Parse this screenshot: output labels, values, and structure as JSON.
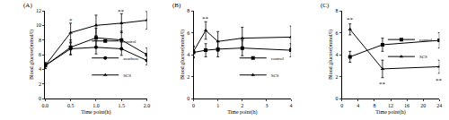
{
  "chart_data": [
    {
      "type": "line",
      "title": "(A)",
      "x_label": "Time point(h)",
      "y_label": "Blood glucose(mmol/l)",
      "x": [
        0,
        0.5,
        1,
        1.5,
        2
      ],
      "xlim": [
        0,
        2
      ],
      "xticks": [
        {
          "value": 0,
          "label": "0.0"
        },
        {
          "value": 0.5,
          "label": "0.5"
        },
        {
          "value": 1,
          "label": "1.0"
        },
        {
          "value": 1.5,
          "label": "1.5"
        },
        {
          "value": 2,
          "label": "2.0"
        }
      ],
      "ylim": [
        0,
        12
      ],
      "yticks": [
        0,
        2,
        4,
        6,
        8,
        10,
        12
      ],
      "legend": "bottom right",
      "series": [
        {
          "name": "control",
          "color": "#000000",
          "marker": "square",
          "values": [
            4.5,
            7.0,
            8.3,
            8.0,
            6.0
          ],
          "errors": [
            0.4,
            1.0,
            1.3,
            1.2,
            0.9
          ]
        },
        {
          "name": "acarbose",
          "color": "#000000",
          "marker": "circle",
          "values": [
            4.5,
            6.8,
            7.0,
            6.8,
            5.2
          ],
          "errors": [
            0.4,
            0.8,
            0.9,
            0.9,
            0.6
          ]
        },
        {
          "name": "SCS",
          "color": "#000000",
          "marker": "triangle",
          "values": [
            4.5,
            9.0,
            10.0,
            10.3,
            10.7
          ],
          "errors": [
            0.4,
            1.3,
            1.4,
            1.3,
            1.2
          ]
        }
      ],
      "annotations": [
        {
          "x": 0.5,
          "y": 10.6,
          "text": "*"
        },
        {
          "x": 1.5,
          "y": 11.9,
          "text": "**"
        },
        {
          "x": 2,
          "y": 12.2,
          "text": "**"
        }
      ]
    },
    {
      "type": "line",
      "title": "(B)",
      "x_label": "Time point(h)",
      "y_label": "Blood glucose(mmol/l)",
      "x": [
        0,
        0.5,
        1,
        2,
        4
      ],
      "xlim": [
        0,
        4
      ],
      "xticks": [
        0,
        1,
        2,
        3,
        4
      ],
      "ylim": [
        0,
        8
      ],
      "yticks": [
        0,
        2,
        4,
        6,
        8
      ],
      "legend": "bottom right",
      "series": [
        {
          "name": "control",
          "color": "#000000",
          "marker": "square",
          "values": [
            4.2,
            4.4,
            4.5,
            4.6,
            4.4
          ],
          "errors": [
            0.5,
            0.6,
            0.7,
            0.7,
            0.6
          ]
        },
        {
          "name": "SCS",
          "color": "#000000",
          "marker": "triangle",
          "values": [
            4.3,
            6.2,
            5.2,
            5.5,
            5.6
          ],
          "errors": [
            0.5,
            0.8,
            0.9,
            1.0,
            1.0
          ]
        }
      ],
      "annotations": [
        {
          "x": 0.5,
          "y": 7.3,
          "text": "**"
        }
      ]
    },
    {
      "type": "line",
      "title": "(C)",
      "x_label": "Time point(h)",
      "y_label": "Blood glucose(mmol/l)",
      "x": [
        2,
        10,
        24
      ],
      "xlim": [
        0,
        24
      ],
      "xticks": [
        0,
        4,
        8,
        12,
        16,
        20,
        24
      ],
      "ylim": [
        0,
        8
      ],
      "yticks": [
        0,
        2,
        4,
        6,
        8
      ],
      "legend": "top right",
      "series": [
        {
          "name": "control",
          "color": "#000000",
          "marker": "square",
          "values": [
            3.8,
            4.9,
            5.3
          ],
          "errors": [
            0.5,
            0.6,
            0.7
          ]
        },
        {
          "name": "SCS",
          "color": "#000000",
          "marker": "triangle",
          "values": [
            6.3,
            2.7,
            2.9
          ],
          "errors": [
            0.5,
            0.8,
            0.6
          ]
        }
      ],
      "annotations": [
        {
          "x": 2,
          "y": 7.2,
          "text": "**"
        },
        {
          "x": 10,
          "y": 1.3,
          "text": "**"
        },
        {
          "x": 24,
          "y": 1.6,
          "text": "**"
        }
      ]
    }
  ]
}
